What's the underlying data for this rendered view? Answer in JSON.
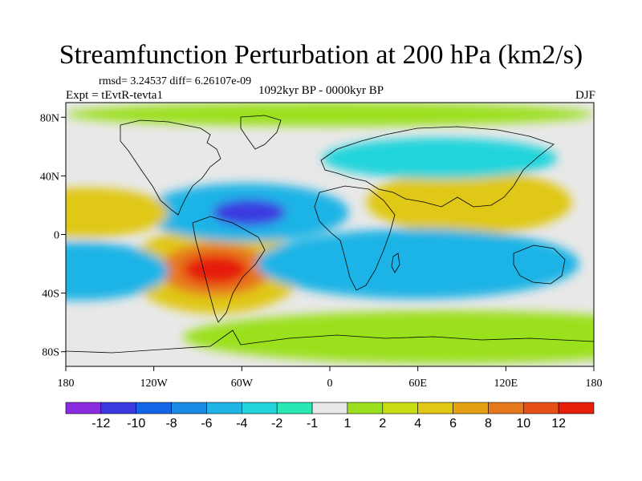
{
  "title": "Streamfunction Perturbation at 200 hPa (km2/s)",
  "stats": "rmsd= 3.24537 diff= 6.26107e-09",
  "experiment": "Expt = tEvtR-tevta1",
  "period": "1092kyr BP - 0000kyr BP",
  "season": "DJF",
  "chart_data": {
    "type": "heatmap",
    "projection": "cylindrical-equidistant",
    "lon_range": [
      -180,
      180
    ],
    "lat_range": [
      -90,
      90
    ],
    "x_ticks": [
      {
        "lon": -180,
        "label": "180"
      },
      {
        "lon": -120,
        "label": "120W"
      },
      {
        "lon": -60,
        "label": "60W"
      },
      {
        "lon": 0,
        "label": "0"
      },
      {
        "lon": 60,
        "label": "60E"
      },
      {
        "lon": 120,
        "label": "120E"
      },
      {
        "lon": 180,
        "label": "180"
      }
    ],
    "y_ticks": [
      {
        "lat": 80,
        "label": "80N"
      },
      {
        "lat": 40,
        "label": "40N"
      },
      {
        "lat": 0,
        "label": "0"
      },
      {
        "lat": -40,
        "label": "40S"
      },
      {
        "lat": -80,
        "label": "80S"
      }
    ],
    "colorbar": {
      "colors": [
        "#8a2be2",
        "#3a3ae0",
        "#1464e6",
        "#1a8ce6",
        "#1eb4e6",
        "#22d4dc",
        "#28e8b4",
        "#e8e8e8",
        "#9be01e",
        "#c8dc14",
        "#e0c814",
        "#e6a014",
        "#e6781e",
        "#e65014",
        "#e61e0a"
      ],
      "labels": [
        "-12",
        "-10",
        "-8",
        "-6",
        "-4",
        "-2",
        "-1",
        "1",
        "2",
        "4",
        "6",
        "8",
        "10",
        "12"
      ]
    },
    "features": [
      {
        "lon": -78,
        "lat": -24,
        "rx": 60,
        "ry": 30,
        "level": 6,
        "note": "positive anomaly over South America"
      },
      {
        "lon": -78,
        "lat": -24,
        "rx": 38,
        "ry": 18,
        "level": 10
      },
      {
        "lon": -78,
        "lat": -24,
        "rx": 22,
        "ry": 10,
        "level": 12
      },
      {
        "lon": -57,
        "lat": 15,
        "rx": 70,
        "ry": 20,
        "level": -4,
        "note": "negative anomaly tropical Atlantic"
      },
      {
        "lon": -55,
        "lat": 15,
        "rx": 25,
        "ry": 9,
        "level": -10
      },
      {
        "lon": -165,
        "lat": 15,
        "rx": 55,
        "ry": 17,
        "level": 6
      },
      {
        "lon": 95,
        "lat": 22,
        "rx": 70,
        "ry": 22,
        "level": 6
      },
      {
        "lon": 60,
        "lat": -20,
        "rx": 110,
        "ry": 24,
        "level": -4
      },
      {
        "lon": -170,
        "lat": -25,
        "rx": 60,
        "ry": 20,
        "level": -4
      },
      {
        "lon": 0,
        "lat": 82,
        "rx": 180,
        "ry": 8,
        "level": 2
      },
      {
        "lon": 75,
        "lat": 52,
        "rx": 80,
        "ry": 14,
        "level": -2
      },
      {
        "lon": 80,
        "lat": -70,
        "rx": 180,
        "ry": 18,
        "level": 2
      }
    ]
  }
}
